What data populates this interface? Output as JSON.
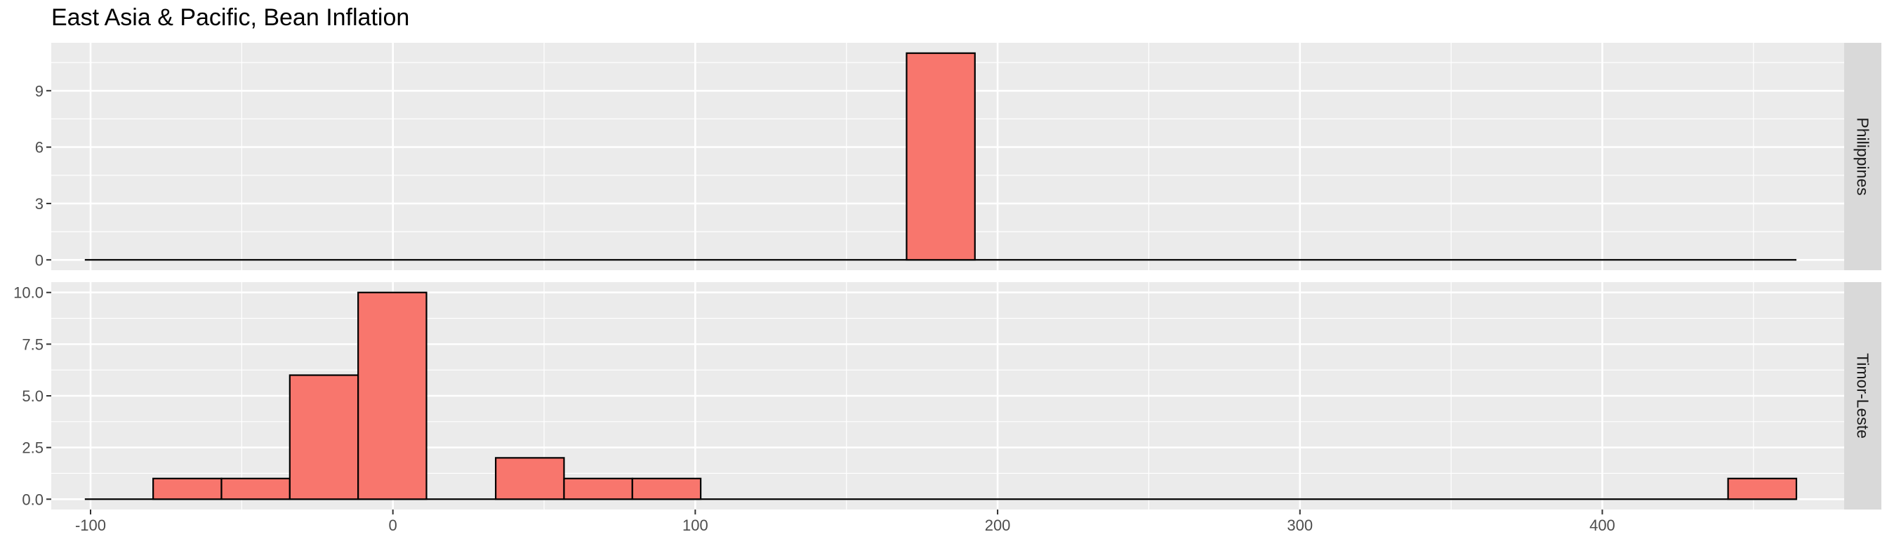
{
  "chart_data": {
    "type": "bar",
    "title": "East Asia & Pacific, Bean Inflation",
    "xlabel": "",
    "ylabel": "",
    "subtype": "faceted histogram (rows), shared x axis, free y scales",
    "bin_width": 22.6,
    "xlim": [
      -113,
      480
    ],
    "x_ticks": [
      -100,
      0,
      100,
      200,
      300,
      400
    ],
    "x_tick_labels": [
      "-100",
      "0",
      "100",
      "200",
      "300",
      "400"
    ],
    "fill_color": "#F8766D",
    "outline_color": "#000000",
    "panel_background": "#EBEBEB",
    "grid": true,
    "legend": "none",
    "panels": [
      {
        "facet": "Philippines",
        "ylim": [
          -0.55,
          11.55
        ],
        "y_ticks": [
          0,
          3,
          6,
          9
        ],
        "y_tick_labels": [
          "0",
          "3",
          "6",
          "9"
        ],
        "bins": [
          {
            "x0": 169.9,
            "x1": 192.5,
            "count": 11
          }
        ]
      },
      {
        "facet": "Timor-Leste",
        "ylim": [
          -0.5,
          10.5
        ],
        "y_ticks": [
          0,
          2.5,
          5,
          7.5,
          10
        ],
        "y_tick_labels": [
          "0.0",
          "2.5",
          "5.0",
          "7.5",
          "10.0"
        ],
        "bins": [
          {
            "x0": -79.3,
            "x1": -56.7,
            "count": 1
          },
          {
            "x0": -56.7,
            "x1": -34.1,
            "count": 1
          },
          {
            "x0": -34.1,
            "x1": -11.5,
            "count": 6
          },
          {
            "x0": -11.5,
            "x1": 11.1,
            "count": 10
          },
          {
            "x0": 34.0,
            "x1": 56.6,
            "count": 2
          },
          {
            "x0": 56.6,
            "x1": 79.2,
            "count": 1
          },
          {
            "x0": 79.2,
            "x1": 101.8,
            "count": 1
          },
          {
            "x0": 441.6,
            "x1": 464.2,
            "count": 1
          }
        ]
      }
    ],
    "baseline_range": [
      -101.9,
      464.2
    ]
  }
}
